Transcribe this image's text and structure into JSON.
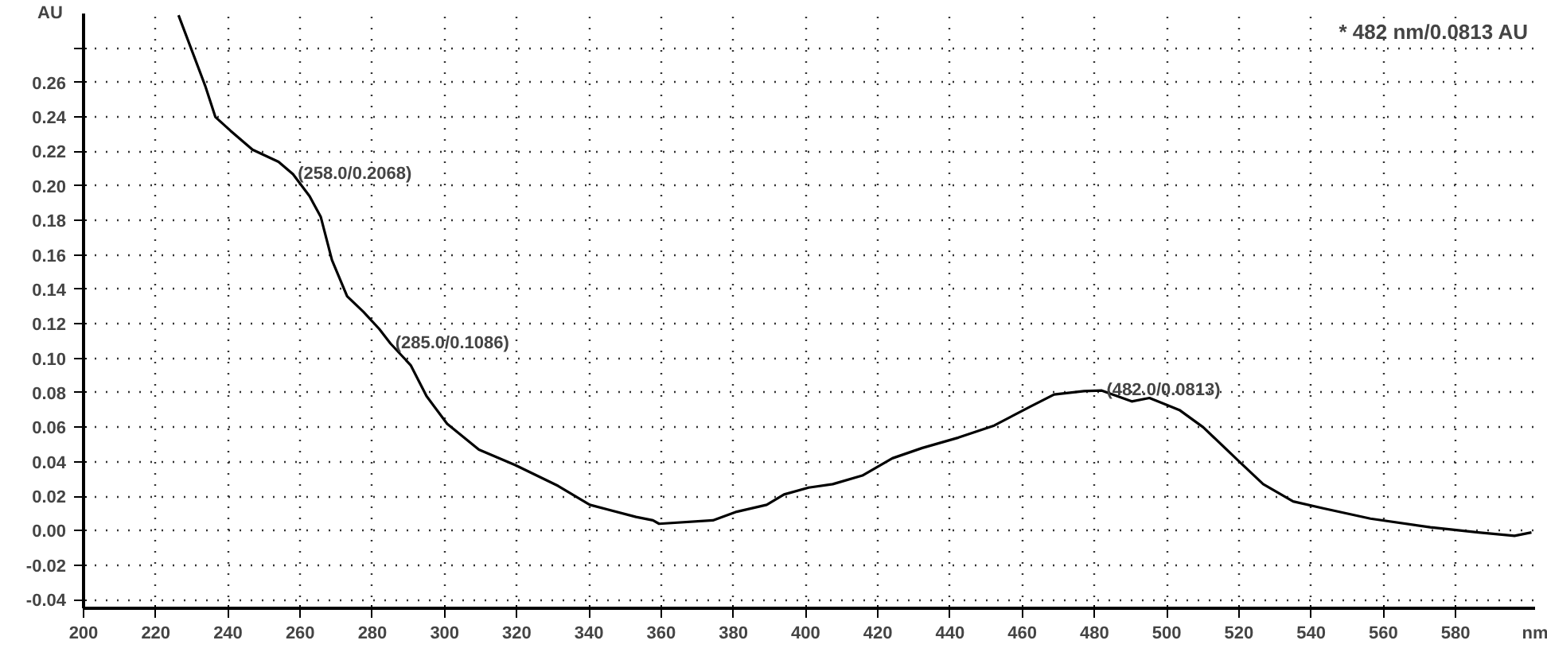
{
  "chart_data": {
    "type": "line",
    "xlabel": "nm",
    "ylabel": "AU",
    "x": [
      226.3,
      233.7,
      236.5,
      240.7,
      246.8,
      254,
      258,
      262.6,
      265.7,
      268.8,
      273,
      277.5,
      281.9,
      285,
      290.6,
      295,
      300.7,
      309.5,
      319.6,
      331.4,
      340.2,
      353,
      357.7,
      359.4,
      374.3,
      380.9,
      389.2,
      394,
      400.8,
      407.5,
      415.7,
      424,
      432.3,
      442.3,
      452.2,
      462.2,
      468.8,
      477.1,
      482,
      490.3,
      495.2,
      503.5,
      510.1,
      520.1,
      526.7,
      535,
      543.3,
      556.4,
      573,
      586.3,
      596.3,
      601
    ],
    "series": [
      {
        "color": "#000000",
        "values": [
          0.299,
          0.258,
          0.24,
          0.232,
          0.221,
          0.214,
          0.2068,
          0.194,
          0.182,
          0.157,
          0.136,
          0.127,
          0.117,
          0.1086,
          0.096,
          0.078,
          0.062,
          0.047,
          0.038,
          0.026,
          0.015,
          0.008,
          0.006,
          0.004,
          0.006,
          0.011,
          0.015,
          0.021,
          0.025,
          0.027,
          0.032,
          0.042,
          0.048,
          0.054,
          0.061,
          0.072,
          0.079,
          0.081,
          0.0813,
          0.075,
          0.077,
          0.07,
          0.06,
          0.04,
          0.027,
          0.017,
          0.013,
          0.007,
          0.002,
          -0.001,
          -0.003,
          -0.001
        ]
      }
    ],
    "xlim": [
      200,
      602
    ],
    "ylim": [
      -0.045,
      0.3
    ],
    "xticks": [
      200,
      220,
      240,
      260,
      280,
      300,
      320,
      340,
      360,
      380,
      400,
      420,
      440,
      460,
      480,
      500,
      520,
      540,
      560,
      580
    ],
    "yticks": [
      -0.04,
      -0.02,
      {
        "value": 0,
        "label": "0.00"
      },
      0.02,
      0.04,
      0.06,
      0.08,
      {
        "value": 0.1,
        "label": "0.10"
      },
      0.12,
      0.14,
      0.16,
      0.18,
      {
        "value": 0.2,
        "label": "0.20"
      },
      0.22,
      0.24,
      0.26,
      {
        "value": 0.28,
        "label": null
      }
    ],
    "grid": true,
    "line_style": "solid",
    "marker": "none",
    "annotations": [
      {
        "text": "(258.0/0.2068)",
        "x": 258,
        "y": 0.2068
      },
      {
        "text": "(285.0/0.1086)",
        "x": 285,
        "y": 0.1086
      },
      {
        "text": "(482.0/0.0813)",
        "x": 482,
        "y": 0.0813
      },
      "* 482 nm/0.0813 AU"
    ]
  }
}
